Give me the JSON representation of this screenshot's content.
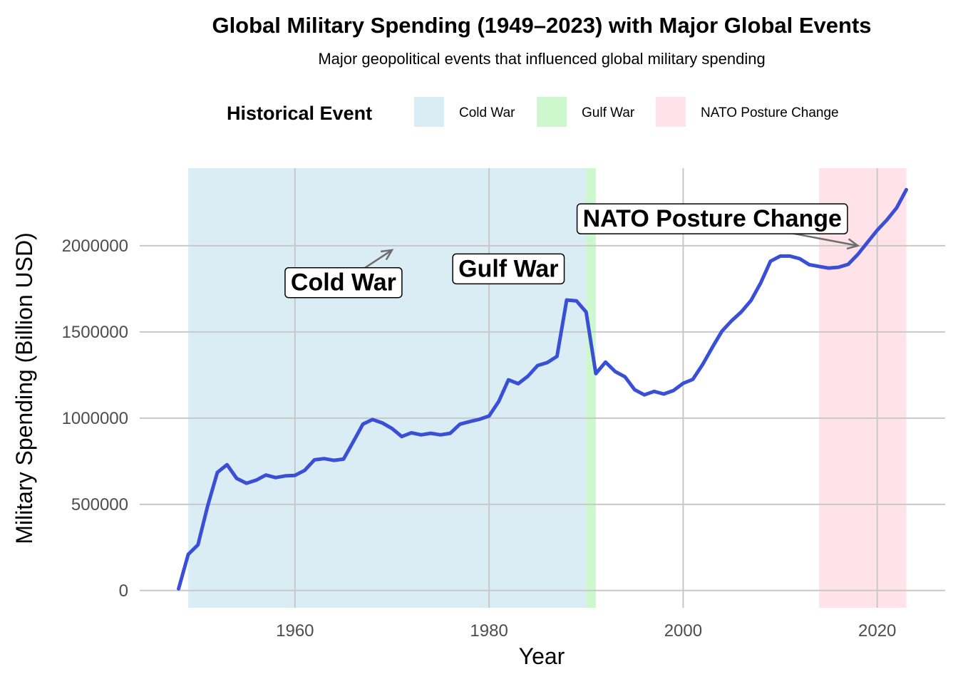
{
  "chart_data": {
    "type": "line",
    "title": "Global Military Spending (1949–2023) with Major Global Events",
    "subtitle": "Major geopolitical events that influenced global military spending",
    "xlabel": "Year",
    "ylabel": "Military Spending (Billion USD)",
    "xlim": [
      1944,
      2027
    ],
    "ylim": [
      -100000,
      2450000
    ],
    "x_ticks": [
      1960,
      1980,
      2000,
      2020
    ],
    "y_ticks": [
      0,
      500000,
      1000000,
      1500000,
      2000000
    ],
    "x_tick_labels": [
      "1960",
      "1980",
      "2000",
      "2020"
    ],
    "y_tick_labels": [
      "0",
      "500000",
      "1000000",
      "1500000",
      "2000000"
    ],
    "grid": true,
    "legend": {
      "title": "Historical Event",
      "placement": "top",
      "entries": [
        {
          "label": "Cold War",
          "color": "#add8e6"
        },
        {
          "label": "Gulf War",
          "color": "#90ee90"
        },
        {
          "label": "NATO Posture Change",
          "color": "#ffc0cb"
        }
      ]
    },
    "event_bands": [
      {
        "name": "Cold War",
        "start": 1949,
        "end": 1990
      },
      {
        "name": "Gulf War",
        "start": 1990,
        "end": 1991
      },
      {
        "name": "NATO Posture Change",
        "start": 2014,
        "end": 2023
      }
    ],
    "line_color": "#3a4fd8",
    "series": [
      {
        "x": [
          1948,
          1949,
          1950,
          1951,
          1952,
          1953,
          1954,
          1955,
          1956,
          1957,
          1958,
          1959,
          1960,
          1961,
          1962,
          1963,
          1964,
          1965,
          1966,
          1967,
          1968,
          1969,
          1970,
          1971,
          1972,
          1973,
          1974,
          1975,
          1976,
          1977,
          1978,
          1979,
          1980,
          1981,
          1982,
          1983,
          1984,
          1985,
          1986,
          1987,
          1988,
          1989,
          1990,
          1991,
          1992,
          1993,
          1994,
          1995,
          1996,
          1997,
          1998,
          1999,
          2000,
          2001,
          2002,
          2003,
          2004,
          2005,
          2006,
          2007,
          2008,
          2009,
          2010,
          2011,
          2012,
          2013,
          2014,
          2015,
          2016,
          2017,
          2018,
          2019,
          2020,
          2021,
          2022,
          2023
        ],
        "values": [
          10000,
          210000,
          265000,
          490000,
          685000,
          730000,
          650000,
          622000,
          640000,
          670000,
          655000,
          665000,
          668000,
          697000,
          758000,
          765000,
          755000,
          762000,
          862000,
          965000,
          992000,
          972000,
          940000,
          893000,
          915000,
          903000,
          912000,
          903000,
          912000,
          965000,
          980000,
          993000,
          1012000,
          1097000,
          1222000,
          1200000,
          1243000,
          1305000,
          1322000,
          1358000,
          1685000,
          1680000,
          1615000,
          1258000,
          1325000,
          1270000,
          1240000,
          1165000,
          1135000,
          1155000,
          1140000,
          1160000,
          1202000,
          1225000,
          1310000,
          1410000,
          1505000,
          1565000,
          1617000,
          1683000,
          1785000,
          1910000,
          1940000,
          1940000,
          1925000,
          1890000,
          1880000,
          1870000,
          1875000,
          1892000,
          1950000,
          2020000,
          2090000,
          2150000,
          2220000,
          2325000
        ]
      }
    ],
    "annotations": [
      {
        "label": "Cold War",
        "x": 1965,
        "y": 1790000,
        "arrow_to": [
          1970,
          1975000
        ]
      },
      {
        "label": "Gulf War",
        "x": 1982,
        "y": 1870000,
        "arrow_to": null
      },
      {
        "label": "NATO Posture Change",
        "x": 2003,
        "y": 2160000,
        "arrow_to": [
          2018,
          2000000
        ]
      }
    ]
  }
}
